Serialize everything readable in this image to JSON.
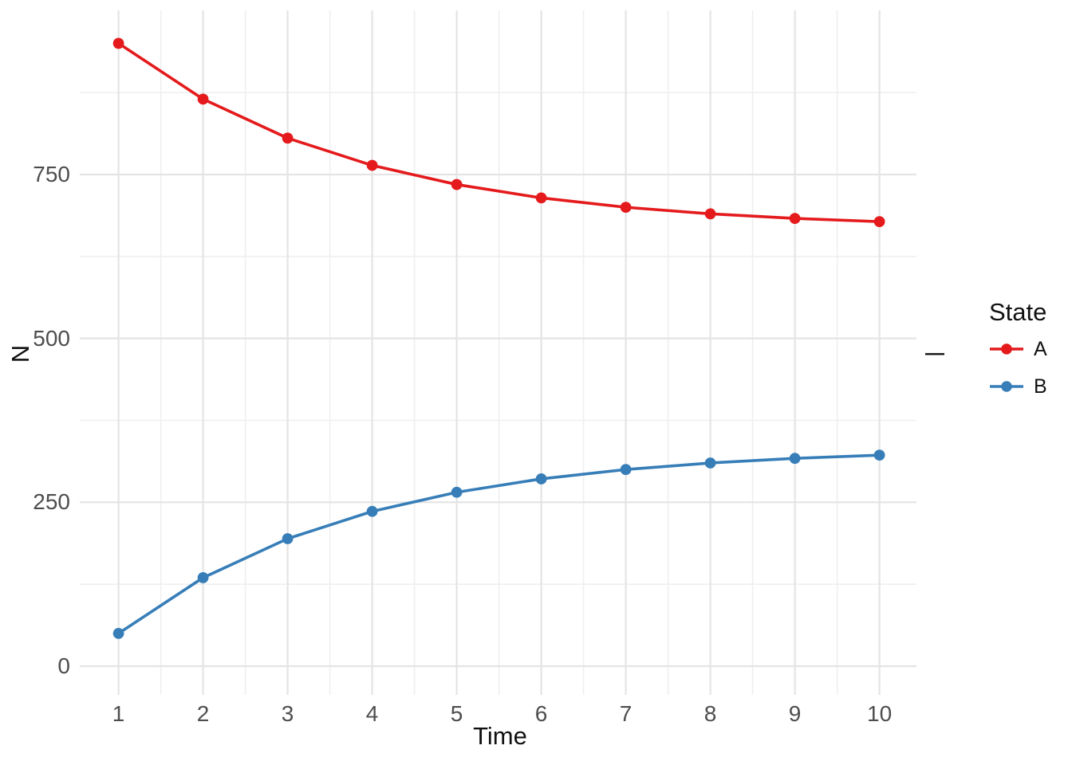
{
  "chart_data": {
    "type": "line",
    "title": "",
    "xlabel": "Time",
    "ylabel": "N",
    "x": [
      1,
      2,
      3,
      4,
      5,
      6,
      7,
      8,
      9,
      10
    ],
    "series": [
      {
        "name": "A",
        "color": "#E41A1C",
        "values": [
          950,
          865,
          805.5,
          763.9,
          734.7,
          714.3,
          700,
          690,
          683,
          678.1
        ]
      },
      {
        "name": "B",
        "color": "#377EB8",
        "values": [
          50,
          135,
          194.5,
          236.1,
          265.3,
          285.7,
          300,
          310,
          317,
          321.9
        ]
      }
    ],
    "x_ticks": [
      1,
      2,
      3,
      4,
      5,
      6,
      7,
      8,
      9,
      10
    ],
    "y_ticks": [
      0,
      250,
      500,
      750
    ],
    "x_minor_gridlines": [
      1.5,
      2.5,
      3.5,
      4.5,
      5.5,
      6.5,
      7.5,
      8.5,
      9.5
    ],
    "y_minor_gridlines": [
      125,
      375,
      625,
      875
    ],
    "xlim": [
      0.55,
      10.45
    ],
    "ylim": [
      -44,
      1000
    ],
    "grid": "major+minor",
    "legend_position": "right",
    "marker": "filled-circle"
  },
  "legend": {
    "title": "State",
    "items": [
      {
        "label": "A",
        "color": "#E41A1C"
      },
      {
        "label": "B",
        "color": "#377EB8"
      }
    ]
  },
  "annotations": {
    "right_axis_dash": "—"
  },
  "colors": {
    "background": "#FFFFFF",
    "grid_major": "#E4E4E4",
    "grid_minor": "#EFEFEF",
    "tick_text": "#4D4D4D",
    "title_text": "#111111"
  }
}
